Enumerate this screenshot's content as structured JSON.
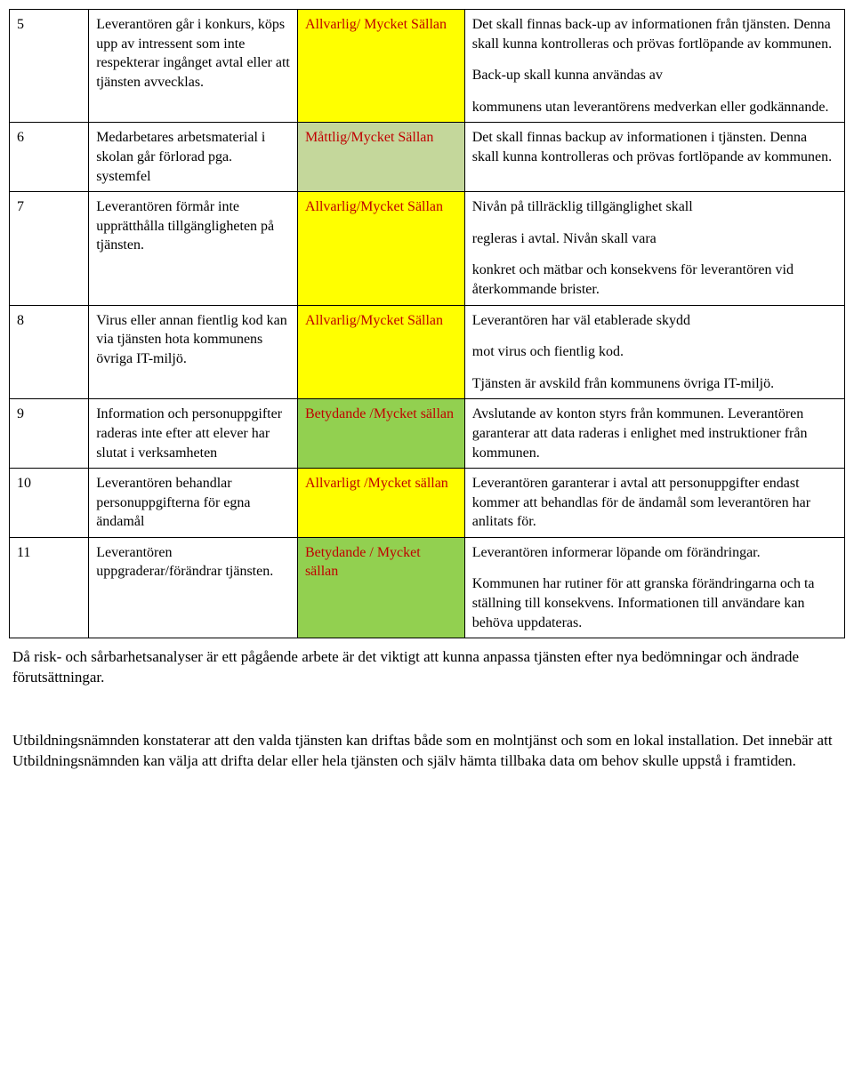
{
  "table": {
    "colors": {
      "yellow": "#ffff00",
      "olive": "#c4d79b",
      "green": "#92d050",
      "text_red": "#c00000",
      "border": "#000000"
    },
    "rows": [
      {
        "id": "5",
        "desc": "Leverantören går i konkurs, köps upp av intressent som inte respekterar ingånget avtal eller att tjänsten avvecklas.",
        "sev": "Allvarlig/ Mycket Sällan",
        "sev_class": "sev-yellow",
        "act": [
          "Det skall finnas back-up av informationen från tjänsten. Denna skall kunna kontrolleras och prövas fortlöpande av kommunen.",
          "Back-up skall kunna användas av",
          "kommunens utan leverantörens medverkan eller godkännande."
        ]
      },
      {
        "id": "6",
        "desc": "Medarbetares arbetsmaterial i skolan går förlorad pga. systemfel",
        "sev": "Måttlig/Mycket Sällan",
        "sev_class": "sev-olive",
        "act": [
          "Det skall finnas backup av informationen i tjänsten. Denna skall kunna kontrolleras och prövas fortlöpande av kommunen."
        ]
      },
      {
        "id": "7",
        "desc": "Leverantören förmår inte upprätthålla tillgängligheten på tjänsten.",
        "sev": "Allvarlig/Mycket Sällan",
        "sev_class": "sev-yellow",
        "act": [
          "Nivån på tillräcklig tillgänglighet skall",
          "regleras i avtal. Nivån skall vara",
          "konkret och mätbar och konsekvens för leverantören vid återkommande brister."
        ]
      },
      {
        "id": "8",
        "desc": "Virus eller annan fientlig kod kan via tjänsten hota kommunens övriga IT-miljö.",
        "sev": "Allvarlig/Mycket Sällan",
        "sev_class": "sev-yellow",
        "act": [
          "Leverantören har väl etablerade skydd",
          "mot virus och fientlig kod.",
          "Tjänsten är avskild från kommunens övriga IT-miljö."
        ]
      },
      {
        "id": "9",
        "desc": "Information och personuppgifter raderas inte efter att elever har slutat i verksamheten",
        "sev": "Betydande /Mycket sällan",
        "sev_class": "sev-green",
        "act": [
          "Avslutande av konton styrs från kommunen. Leverantören garanterar att data raderas i enlighet med instruktioner från kommunen."
        ]
      },
      {
        "id": "10",
        "desc": "Leverantören behandlar personuppgifterna för egna ändamål",
        "sev": "Allvarligt /Mycket sällan",
        "sev_class": "sev-yellow",
        "act": [
          "Leverantören garanterar i avtal att personuppgifter endast kommer att behandlas för de ändamål som leverantören har anlitats för."
        ]
      },
      {
        "id": "11",
        "desc": "Leverantören uppgraderar/förändrar tjänsten.",
        "sev": "Betydande / Mycket sällan",
        "sev_class": "sev-green",
        "act": [
          "Leverantören informerar löpande om förändringar.",
          "Kommunen har rutiner för att granska förändringarna och ta ställning till konsekvens. Informationen till användare kan behöva uppdateras."
        ]
      }
    ]
  },
  "footer": {
    "p1": "Då risk- och sårbarhetsanalyser är ett pågående arbete är det viktigt att kunna anpassa tjänsten efter nya bedömningar och ändrade förutsättningar.",
    "p2": "Utbildningsnämnden konstaterar att den valda tjänsten kan driftas både som en molntjänst och som en lokal installation. Det innebär att Utbildningsnämnden kan välja att drifta delar eller hela tjänsten och själv hämta tillbaka data om behov skulle uppstå i framtiden."
  }
}
